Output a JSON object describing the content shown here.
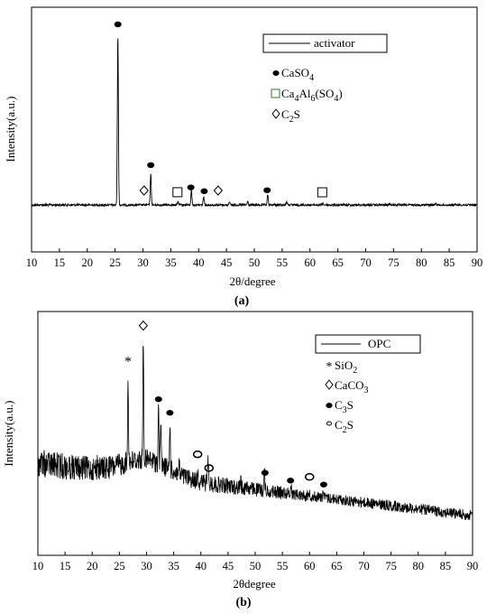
{
  "chart_data": [
    {
      "panel": "(a)",
      "type": "line",
      "xlabel": "2θ/degree",
      "ylabel": "Intensity(a.u.)",
      "xlim": [
        10,
        90
      ],
      "xticks": [
        10,
        15,
        20,
        25,
        30,
        35,
        40,
        45,
        50,
        55,
        60,
        65,
        70,
        75,
        80,
        85,
        90
      ],
      "legend_position": "top-right",
      "series": [
        {
          "name": "activator",
          "color": "#000000",
          "baseline": 0.08,
          "peaks": [
            {
              "x": 25.5,
              "y": 1.0
            },
            {
              "x": 31.4,
              "y": 0.18
            },
            {
              "x": 36.3,
              "y": 0.02
            },
            {
              "x": 38.7,
              "y": 0.09
            },
            {
              "x": 40.9,
              "y": 0.05
            },
            {
              "x": 45.5,
              "y": 0.02
            },
            {
              "x": 48.8,
              "y": 0.02
            },
            {
              "x": 52.4,
              "y": 0.06
            },
            {
              "x": 55.8,
              "y": 0.02
            },
            {
              "x": 62.3,
              "y": 0.01
            },
            {
              "x": 74.3,
              "y": 0.01
            },
            {
              "x": 82.6,
              "y": 0.01
            }
          ]
        }
      ],
      "phase_markers": [
        {
          "phase": "CaSO4",
          "symbol": "filled-circle",
          "x": [
            25.5,
            31.4,
            38.6,
            41.0,
            52.3
          ]
        },
        {
          "phase": "Ca4Al6(SO4)",
          "symbol": "open-square",
          "x": [
            36.2,
            62.2
          ]
        },
        {
          "phase": "C2S",
          "symbol": "open-diamond",
          "x": [
            30.2,
            43.5
          ]
        }
      ],
      "legend_entries": [
        {
          "symbol": "line",
          "label": "activator"
        },
        {
          "symbol": "filled-circle",
          "text": "CaSO",
          "sub": "4",
          "after": ""
        },
        {
          "symbol": "open-square",
          "text": "Ca",
          "sub": "4",
          "text2": "Al",
          "sub2": "6",
          "after": "(SO",
          "sub3": "4",
          "after2": ")"
        },
        {
          "symbol": "open-diamond",
          "text": "C",
          "sub": "2",
          "after": "S"
        }
      ],
      "caption": "(a)"
    },
    {
      "panel": "(b)",
      "type": "line",
      "xlabel": "2θdegree",
      "ylabel": "Intensity(a.u.)",
      "xlim": [
        10,
        90
      ],
      "xticks": [
        10,
        15,
        20,
        25,
        30,
        35,
        40,
        45,
        50,
        55,
        60,
        65,
        70,
        75,
        80,
        85,
        90
      ],
      "legend_position": "top-right",
      "series": [
        {
          "name": "OPC",
          "color": "#000000",
          "peaks": [
            {
              "x": 21.0,
              "y": 0.05
            },
            {
              "x": 26.6,
              "y": 0.55
            },
            {
              "x": 29.4,
              "y": 0.78
            },
            {
              "x": 32.2,
              "y": 0.36
            },
            {
              "x": 32.6,
              "y": 0.28
            },
            {
              "x": 34.3,
              "y": 0.31
            },
            {
              "x": 36.0,
              "y": 0.06
            },
            {
              "x": 39.4,
              "y": 0.08
            },
            {
              "x": 41.3,
              "y": 0.17
            },
            {
              "x": 47.3,
              "y": 0.05
            },
            {
              "x": 48.5,
              "y": 0.04
            },
            {
              "x": 51.7,
              "y": 0.13
            },
            {
              "x": 56.6,
              "y": 0.06
            },
            {
              "x": 60.0,
              "y": 0.03
            },
            {
              "x": 62.5,
              "y": 0.06
            }
          ]
        }
      ],
      "phase_markers": [
        {
          "phase": "SiO2",
          "symbol": "asterisk",
          "x": [
            26.6
          ]
        },
        {
          "phase": "CaCO3",
          "symbol": "open-diamond",
          "x": [
            29.4
          ]
        },
        {
          "phase": "C3S",
          "symbol": "filled-circle",
          "x": [
            32.2,
            34.3,
            51.8,
            56.5,
            62.6
          ]
        },
        {
          "phase": "C2S",
          "symbol": "open-circle",
          "x": [
            39.4,
            41.5,
            60.0
          ]
        }
      ],
      "legend_entries": [
        {
          "symbol": "line",
          "label": "OPC"
        },
        {
          "symbol": "asterisk",
          "text": "SiO",
          "sub": "2",
          "after": ""
        },
        {
          "symbol": "open-diamond",
          "text": "CaCO",
          "sub": "3",
          "after": ""
        },
        {
          "symbol": "filled-circle",
          "text": "C",
          "sub": "3",
          "after": "S"
        },
        {
          "symbol": "open-circle",
          "text": "C",
          "sub": "2",
          "after": "S"
        }
      ],
      "caption": "(b)"
    }
  ]
}
